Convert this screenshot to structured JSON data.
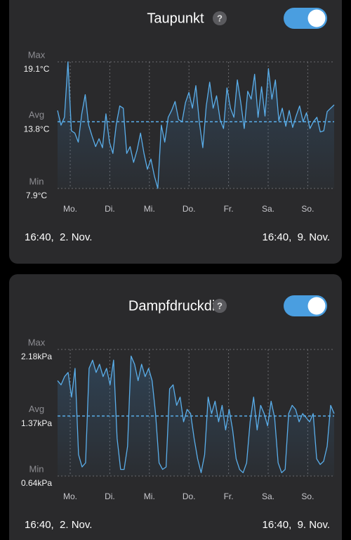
{
  "chart_data": [
    {
      "type": "line",
      "title": "Taupunkt",
      "help_label": "?",
      "toggle_on": true,
      "days": [
        "Mo.",
        "Di.",
        "Mi.",
        "Do.",
        "Fr.",
        "Sa.",
        "So."
      ],
      "values": [
        14.8,
        13.5,
        14.2,
        19.1,
        13.0,
        12.8,
        12.0,
        14.5,
        16.2,
        13.5,
        12.5,
        11.6,
        12.3,
        11.5,
        14.5,
        12.0,
        11.0,
        13.6,
        15.2,
        15.0,
        11.0,
        11.6,
        10.2,
        11.3,
        12.8,
        11.0,
        9.6,
        10.5,
        9.0,
        7.9,
        13.5,
        12.0,
        14.2,
        14.8,
        15.6,
        14.0,
        13.8,
        15.5,
        16.4,
        15.0,
        17.0,
        13.8,
        11.5,
        15.2,
        17.3,
        15.0,
        16.1,
        14.0,
        13.2,
        16.8,
        15.0,
        14.2,
        17.5,
        15.5,
        13.2,
        16.5,
        15.8,
        18.0,
        14.2,
        16.9,
        14.3,
        18.5,
        15.8,
        17.5,
        13.9,
        15.0,
        13.4,
        14.8,
        13.3,
        14.3,
        15.2,
        13.8,
        14.6,
        13.2,
        13.8,
        14.2,
        12.9,
        13.0,
        14.7,
        15.0,
        15.3
      ],
      "color": "#5aaeea",
      "ylim": [
        7.9,
        19.1
      ],
      "yticks": [
        {
          "value": 19.1,
          "label": "19.1°C"
        },
        {
          "value": 13.8,
          "label": "13.8°C"
        },
        {
          "value": 7.9,
          "label": "7.9°C"
        }
      ],
      "ytick_names": [
        "Max",
        "Avg",
        "Min"
      ],
      "start": "16:40,  2. Nov.",
      "end": "16:40,  9. Nov."
    },
    {
      "type": "line",
      "title": "Dampfdruckdiff",
      "help_label": "?",
      "toggle_on": true,
      "days": [
        "Mo.",
        "Di.",
        "Mi.",
        "Do.",
        "Fr.",
        "Sa.",
        "So."
      ],
      "values": [
        1.8,
        1.75,
        1.85,
        1.9,
        1.6,
        1.95,
        0.9,
        0.75,
        0.8,
        1.95,
        2.05,
        1.9,
        2.0,
        1.85,
        1.95,
        1.75,
        2.05,
        1.1,
        0.72,
        0.72,
        1.0,
        2.1,
        2.0,
        1.8,
        2.0,
        1.85,
        1.95,
        1.8,
        1.4,
        0.8,
        0.72,
        0.75,
        1.7,
        1.75,
        1.5,
        1.6,
        1.3,
        1.45,
        1.4,
        1.1,
        0.85,
        0.68,
        0.9,
        1.6,
        1.4,
        1.55,
        1.3,
        1.5,
        1.2,
        1.45,
        1.2,
        0.85,
        0.72,
        0.68,
        0.8,
        1.3,
        1.6,
        1.2,
        1.5,
        1.4,
        1.25,
        1.55,
        1.35,
        0.8,
        0.68,
        0.72,
        1.4,
        1.5,
        1.45,
        1.3,
        1.4,
        1.35,
        1.3,
        1.4,
        0.85,
        0.78,
        0.82,
        1.0,
        1.5,
        1.4
      ],
      "color": "#5aaeea",
      "ylim": [
        0.64,
        2.18
      ],
      "yticks": [
        {
          "value": 2.18,
          "label": "2.18kPa"
        },
        {
          "value": 1.37,
          "label": "1.37kPa"
        },
        {
          "value": 0.64,
          "label": "0.64kPa"
        }
      ],
      "ytick_names": [
        "Max",
        "Avg",
        "Min"
      ],
      "start": "16:40,  2. Nov.",
      "end": "16:40,  9. Nov."
    }
  ]
}
